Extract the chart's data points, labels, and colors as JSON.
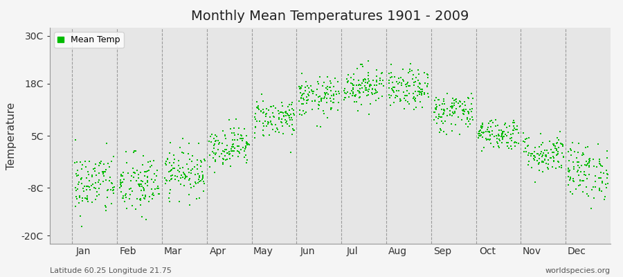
{
  "title": "Monthly Mean Temperatures 1901 - 2009",
  "ylabel": "Temperature",
  "yticks": [
    -20,
    -8,
    5,
    18,
    30
  ],
  "ytick_labels": [
    "-20C",
    "-8C",
    "5C",
    "18C",
    "30C"
  ],
  "ylim": [
    -22,
    32
  ],
  "xlim": [
    0.0,
    12.5
  ],
  "months": [
    "Jan",
    "Feb",
    "Mar",
    "Apr",
    "May",
    "Jun",
    "Jul",
    "Aug",
    "Sep",
    "Oct",
    "Nov",
    "Dec"
  ],
  "month_numbers": [
    1,
    2,
    3,
    4,
    5,
    6,
    7,
    8,
    9,
    10,
    11,
    12
  ],
  "dot_color": "#00bb00",
  "fig_bg_color": "#f5f5f5",
  "plot_bg_color": "#e6e6e6",
  "legend_label": "Mean Temp",
  "subtitle_left": "Latitude 60.25 Longitude 21.75",
  "subtitle_right": "worldspecies.org",
  "years": 109,
  "monthly_means": [
    -7.0,
    -7.5,
    -4.0,
    2.5,
    9.5,
    14.5,
    17.5,
    16.5,
    11.0,
    5.5,
    0.5,
    -4.0
  ],
  "monthly_stds": [
    4.0,
    4.0,
    3.0,
    2.5,
    2.5,
    2.5,
    2.5,
    2.5,
    2.5,
    2.0,
    2.5,
    3.5
  ],
  "vline_positions": [
    0.5,
    1.5,
    2.5,
    3.5,
    4.5,
    5.5,
    6.5,
    7.5,
    8.5,
    9.5,
    10.5,
    11.5
  ]
}
